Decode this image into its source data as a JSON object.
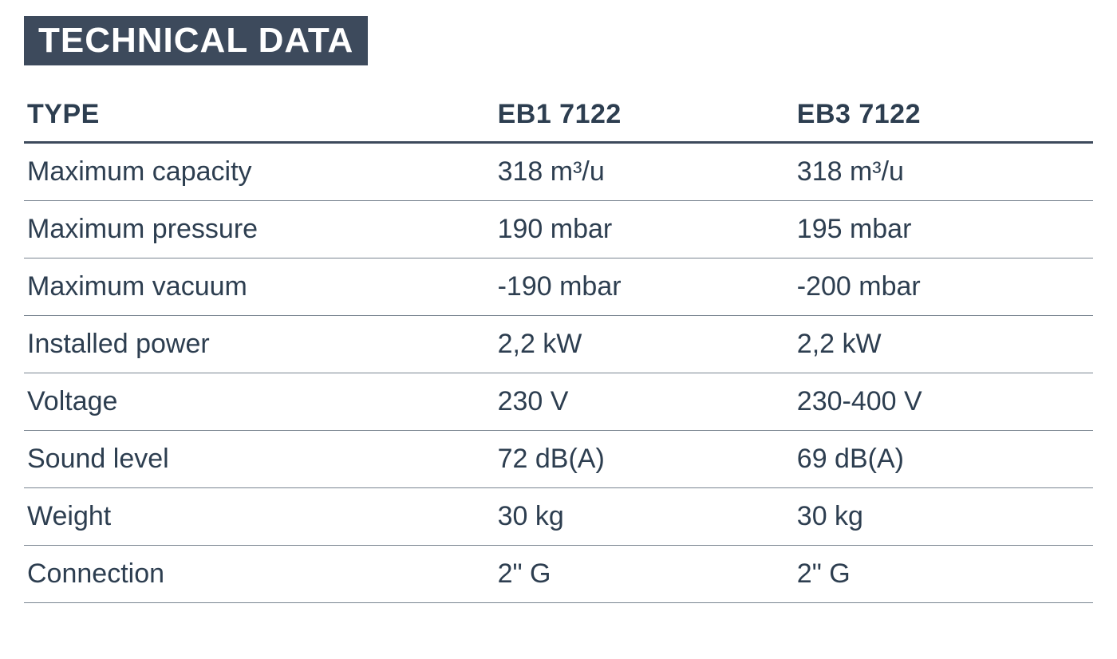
{
  "title": "TECHNICAL DATA",
  "table": {
    "type": "table",
    "background_color": "#ffffff",
    "text_color": "#2d3e50",
    "title_bg_color": "#3d4a5c",
    "title_text_color": "#ffffff",
    "header_border_color": "#3d4a5c",
    "row_border_color": "#7a8591",
    "title_fontsize": 44,
    "header_fontsize": 34,
    "cell_fontsize": 34,
    "column_widths_percent": [
      44,
      28,
      28
    ],
    "columns": [
      "TYPE",
      "EB1 7122",
      "EB3 7122"
    ],
    "rows": [
      [
        "Maximum capacity",
        "318 m³/u",
        "318 m³/u"
      ],
      [
        "Maximum pressure",
        "190 mbar",
        "195 mbar"
      ],
      [
        "Maximum vacuum",
        "-190 mbar",
        "-200 mbar"
      ],
      [
        "Installed power",
        "2,2 kW",
        "2,2 kW"
      ],
      [
        "Voltage",
        "230 V",
        "230-400 V"
      ],
      [
        "Sound level",
        "72 dB(A)",
        "69 dB(A)"
      ],
      [
        "Weight",
        "30 kg",
        "30 kg"
      ],
      [
        "Connection",
        "2\" G",
        "2\" G"
      ]
    ]
  }
}
